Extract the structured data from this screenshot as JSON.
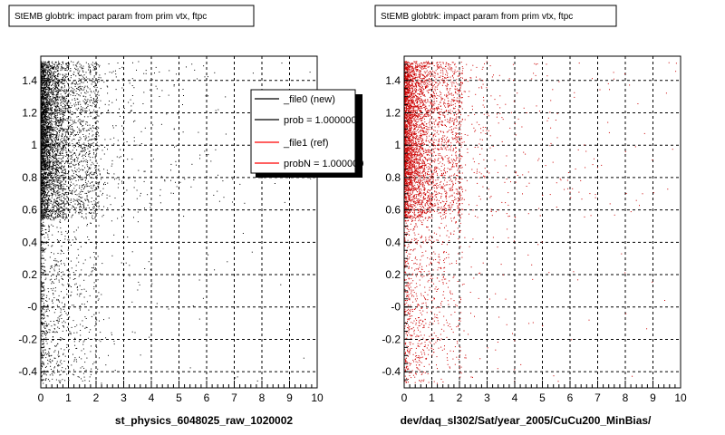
{
  "chart_data": [
    {
      "type": "scatter",
      "title": "StEMB globtrk: impact param from prim vtx, ftpc",
      "xlabel": "st_physics_6048025_raw_1020002",
      "ylabel": "",
      "xlim": [
        0,
        10
      ],
      "ylim": [
        -0.5,
        1.55
      ],
      "x_ticks": [
        "0",
        "1",
        "2",
        "3",
        "4",
        "5",
        "6",
        "7",
        "8",
        "9",
        "10"
      ],
      "y_ticks": [
        "-0.4",
        "-0.2",
        "-0",
        "0.2",
        "0.4",
        "0.6",
        "0.8",
        "1",
        "1.2",
        "1.4"
      ],
      "grid": true,
      "marker_color": "#000000",
      "legend": {
        "placement": "top-right",
        "entries": [
          {
            "label": "_file0 (new)",
            "color": "#000000"
          },
          {
            "label": "prob = 1.000000",
            "color": "#000000"
          },
          {
            "label": "_file1 (ref)",
            "color": "#ff0000"
          },
          {
            "label": "probN = 1.000000",
            "color": "#ff0000"
          }
        ]
      }
    },
    {
      "type": "scatter",
      "title": "StEMB globtrk: impact param from prim vtx, ftpc",
      "xlabel": "dev/daq_sl302/Sat/year_2005/CuCu200_MinBias/",
      "ylabel": "",
      "xlim": [
        0,
        10
      ],
      "ylim": [
        -0.5,
        1.55
      ],
      "x_ticks": [
        "0",
        "1",
        "2",
        "3",
        "4",
        "5",
        "6",
        "7",
        "8",
        "9",
        "10"
      ],
      "y_ticks": [
        "-0.4",
        "-0.2",
        "-0",
        "0.2",
        "0.4",
        "0.6",
        "0.8",
        "1",
        "1.2",
        "1.4"
      ],
      "grid": true,
      "marker_color": "#cc0000"
    }
  ]
}
